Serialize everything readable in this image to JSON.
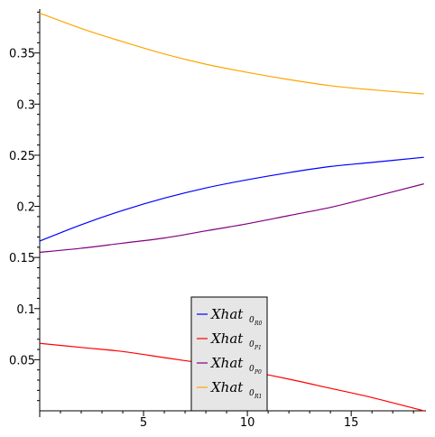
{
  "chart_data": {
    "type": "line",
    "title": "",
    "xlabel": "",
    "ylabel": "",
    "xlim": [
      0,
      18.6
    ],
    "ylim": [
      0,
      0.393
    ],
    "grid": false,
    "legend_position": "bottom-center",
    "x_ticks": [
      {
        "value": 5,
        "label": "5"
      },
      {
        "value": 10,
        "label": "10"
      },
      {
        "value": 15,
        "label": "15"
      }
    ],
    "y_ticks": [
      {
        "value": 0.05,
        "label": "0.05"
      },
      {
        "value": 0.1,
        "label": "0.1"
      },
      {
        "value": 0.15,
        "label": "0.15"
      },
      {
        "value": 0.2,
        "label": "0.2"
      },
      {
        "value": 0.25,
        "label": "0.25"
      },
      {
        "value": 0.3,
        "label": "0.3"
      },
      {
        "value": 0.35,
        "label": "0.35"
      }
    ],
    "x": [
      0,
      2,
      4,
      6,
      8,
      10,
      12,
      14,
      16,
      18.5
    ],
    "series": [
      {
        "name": "Xhat",
        "subscript": "0",
        "subsubscript": "R0",
        "color": "#0000ff",
        "values": [
          0.166,
          0.182,
          0.196,
          0.208,
          0.218,
          0.226,
          0.233,
          0.239,
          0.243,
          0.248
        ]
      },
      {
        "name": "Xhat",
        "subscript": "0",
        "subsubscript": "P1",
        "color": "#ff0000",
        "values": [
          0.066,
          0.062,
          0.058,
          0.052,
          0.046,
          0.039,
          0.031,
          0.022,
          0.013,
          0.0
        ]
      },
      {
        "name": "Xhat",
        "subscript": "0",
        "subsubscript": "P0",
        "color": "#800080",
        "values": [
          0.155,
          0.159,
          0.164,
          0.169,
          0.176,
          0.183,
          0.191,
          0.199,
          0.209,
          0.222
        ]
      },
      {
        "name": "Xhat",
        "subscript": "0",
        "subsubscript": "R1",
        "color": "#ffa500",
        "values": [
          0.389,
          0.374,
          0.361,
          0.349,
          0.339,
          0.331,
          0.324,
          0.318,
          0.314,
          0.31
        ]
      }
    ]
  }
}
